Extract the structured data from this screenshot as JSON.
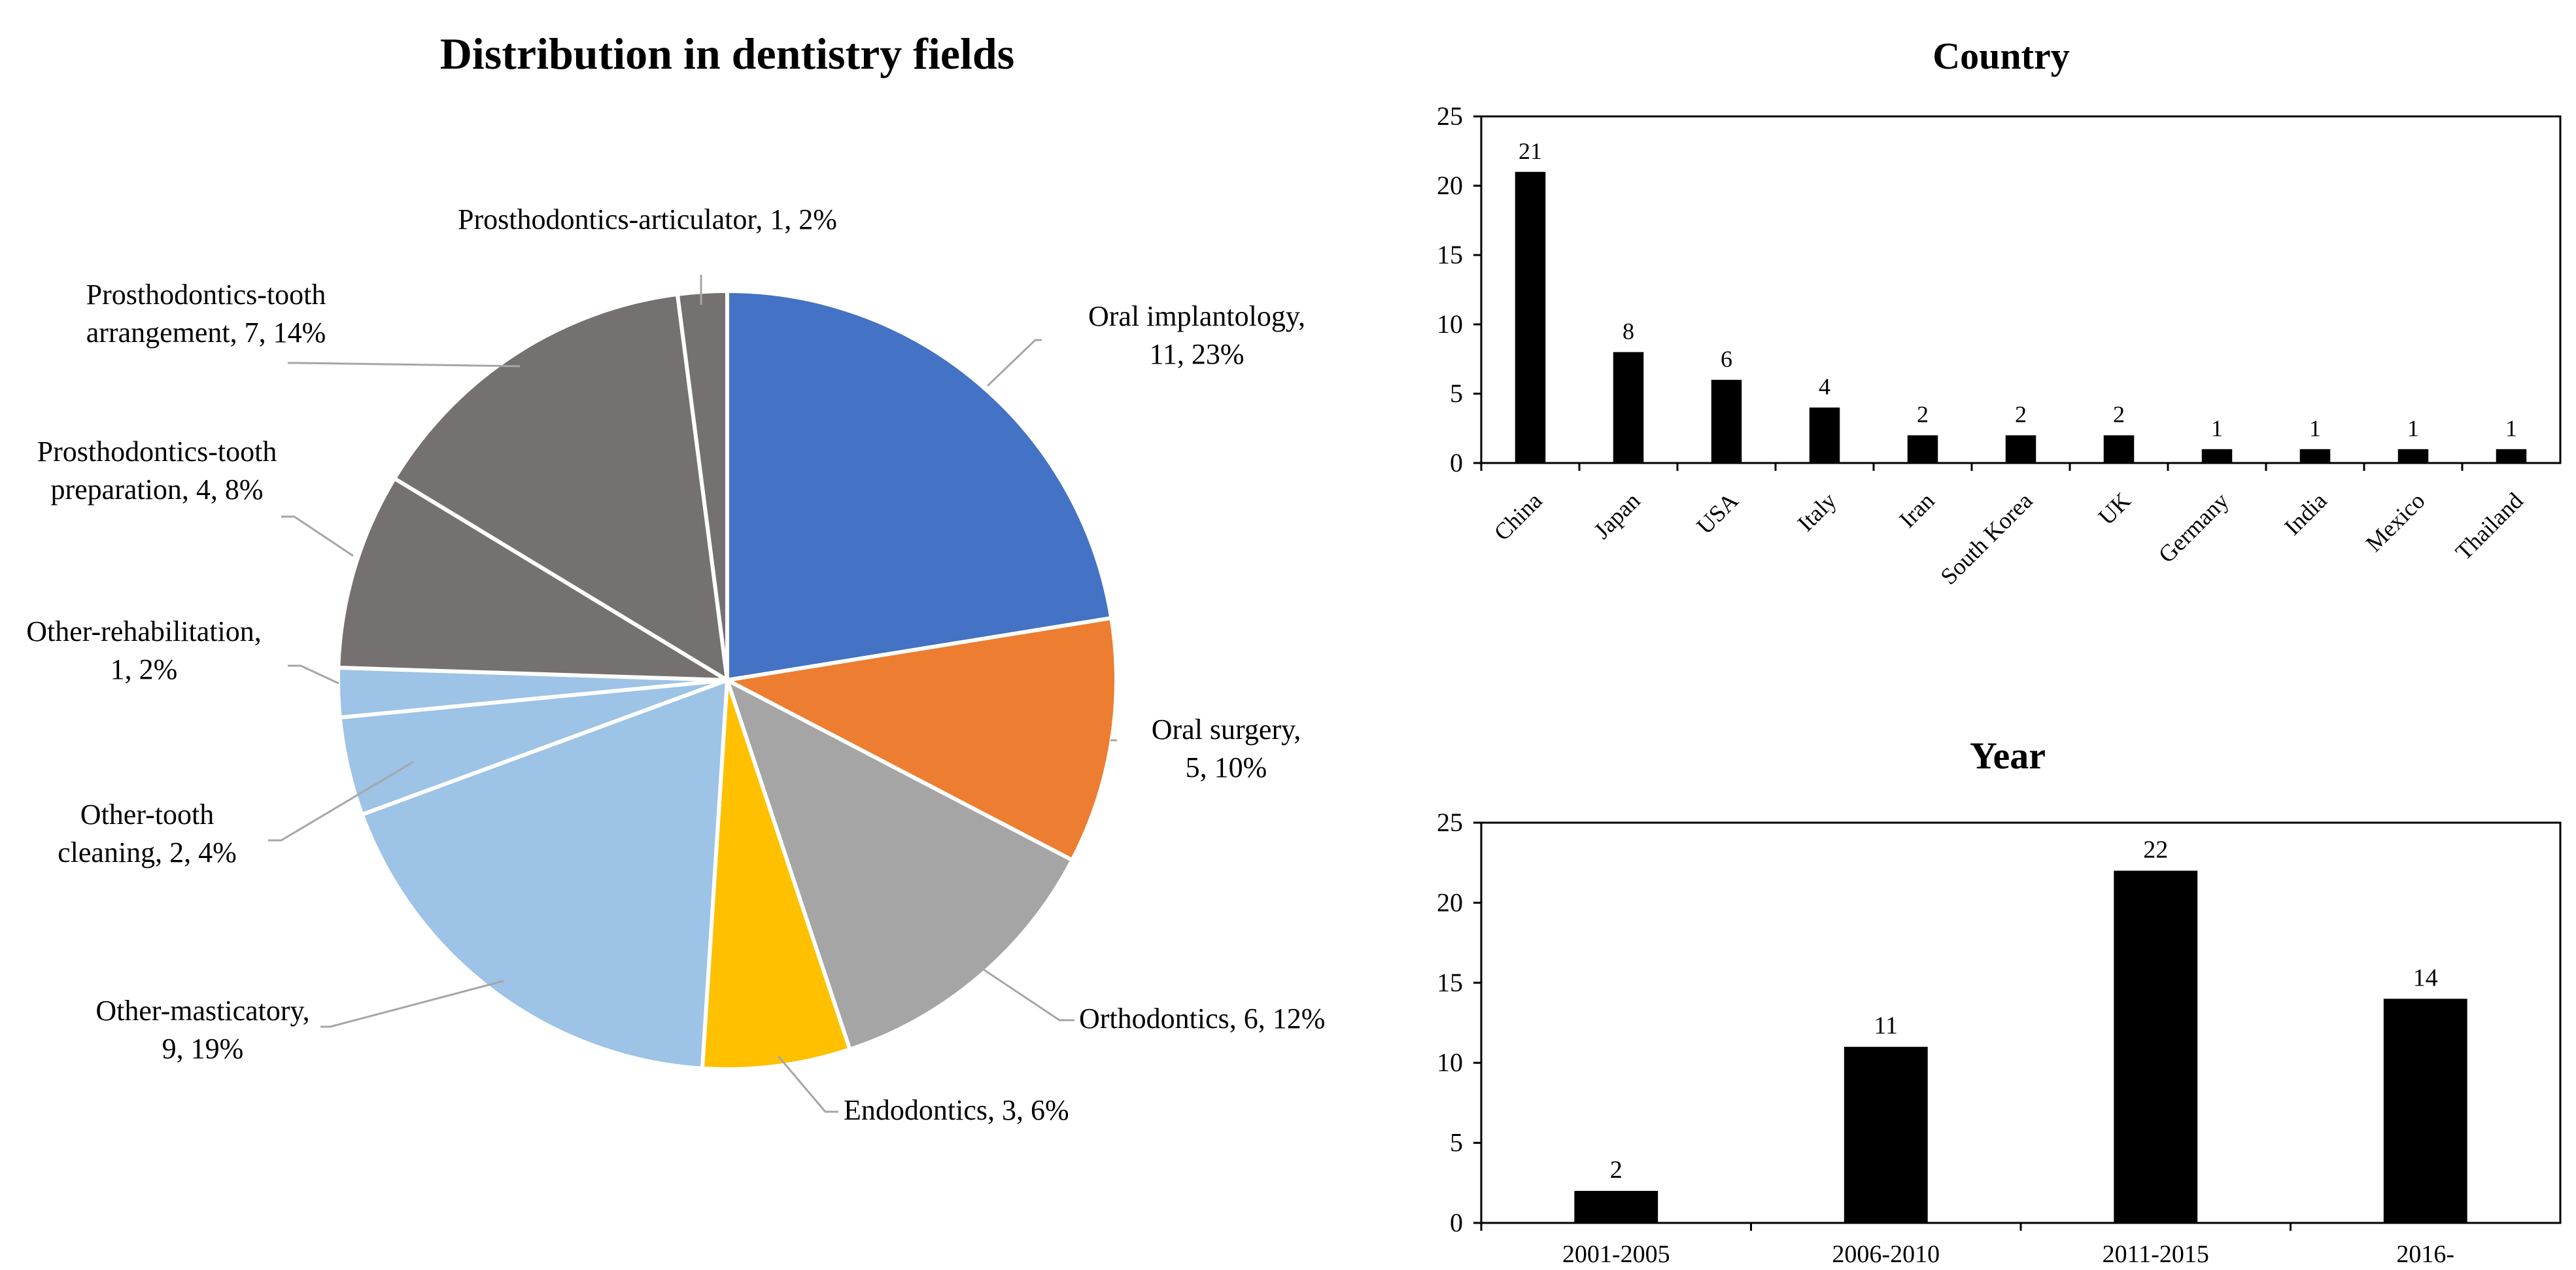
{
  "chart_data": [
    {
      "type": "pie",
      "title": "Distribution in dentistry fields",
      "slices": [
        {
          "label_lines": [
            "Oral implantology,",
            "11, 23%"
          ],
          "value": 11,
          "percent": "23%",
          "color": "#4472C4"
        },
        {
          "label_lines": [
            "Oral surgery,",
            "5, 10%"
          ],
          "value": 5,
          "percent": "10%",
          "color": "#ED7D31"
        },
        {
          "label_lines": [
            "Orthodontics,  6, 12%"
          ],
          "value": 6,
          "percent": "12%",
          "color": "#A5A5A5"
        },
        {
          "label_lines": [
            "Endodontics,  3, 6%"
          ],
          "value": 3,
          "percent": "6%",
          "color": "#FFC000"
        },
        {
          "label_lines": [
            "Other-masticatory,",
            "9, 19%"
          ],
          "value": 9,
          "percent": "19%",
          "color": "#9DC3E6"
        },
        {
          "label_lines": [
            "Other-tooth",
            "cleaning,  2, 4%"
          ],
          "value": 2,
          "percent": "4%",
          "color": "#9DC3E6"
        },
        {
          "label_lines": [
            "Other-rehabilitation,",
            "1, 2%"
          ],
          "value": 1,
          "percent": "2%",
          "color": "#9DC3E6"
        },
        {
          "label_lines": [
            "Prosthodontics-tooth",
            "preparation,  4, 8%"
          ],
          "value": 4,
          "percent": "8%",
          "color": "#767171"
        },
        {
          "label_lines": [
            "Prosthodontics-tooth",
            "arrangement,  7, 14%"
          ],
          "value": 7,
          "percent": "14%",
          "color": "#767171"
        },
        {
          "label_lines": [
            "Prosthodontics-articulator,  1, 2%"
          ],
          "value": 1,
          "percent": "2%",
          "color": "#767171"
        }
      ]
    },
    {
      "type": "bar",
      "title": "Country",
      "categories": [
        "China",
        "Japan",
        "USA",
        "Italy",
        "Iran",
        "South Korea",
        "UK",
        "Germany",
        "India",
        "Mexico",
        "Thailand"
      ],
      "values": [
        21,
        8,
        6,
        4,
        2,
        2,
        2,
        1,
        1,
        1,
        1
      ],
      "ylim": [
        0,
        25
      ],
      "yticks": [
        "0",
        "5",
        "10",
        "15",
        "20",
        "25"
      ],
      "color": "#000000"
    },
    {
      "type": "bar",
      "title": "Year",
      "categories": [
        "2001-2005",
        "2006-2010",
        "2011-2015",
        "2016-"
      ],
      "values": [
        2,
        11,
        22,
        14
      ],
      "ylim": [
        0,
        25
      ],
      "yticks": [
        "0",
        "5",
        "10",
        "15",
        "20",
        "25"
      ],
      "color": "#000000"
    }
  ]
}
